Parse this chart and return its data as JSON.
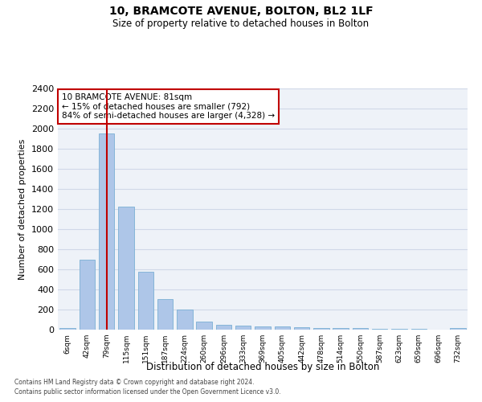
{
  "title1": "10, BRAMCOTE AVENUE, BOLTON, BL2 1LF",
  "title2": "Size of property relative to detached houses in Bolton",
  "xlabel": "Distribution of detached houses by size in Bolton",
  "ylabel": "Number of detached properties",
  "categories": [
    "6sqm",
    "42sqm",
    "79sqm",
    "115sqm",
    "151sqm",
    "187sqm",
    "224sqm",
    "260sqm",
    "296sqm",
    "333sqm",
    "369sqm",
    "405sqm",
    "442sqm",
    "478sqm",
    "514sqm",
    "550sqm",
    "587sqm",
    "623sqm",
    "659sqm",
    "696sqm",
    "732sqm"
  ],
  "values": [
    15,
    700,
    1950,
    1225,
    575,
    305,
    200,
    80,
    45,
    38,
    35,
    30,
    22,
    20,
    18,
    15,
    10,
    8,
    5,
    4,
    18
  ],
  "bar_color": "#aec6e8",
  "bar_edge_color": "#7aafd4",
  "highlight_bar_index": 2,
  "highlight_color": "#c00000",
  "annotation_text": "10 BRAMCOTE AVENUE: 81sqm\n← 15% of detached houses are smaller (792)\n84% of semi-detached houses are larger (4,328) →",
  "annotation_box_color": "#c00000",
  "ylim": [
    0,
    2400
  ],
  "yticks": [
    0,
    200,
    400,
    600,
    800,
    1000,
    1200,
    1400,
    1600,
    1800,
    2000,
    2200,
    2400
  ],
  "grid_color": "#d0d8e8",
  "background_color": "#eef2f8",
  "footer1": "Contains HM Land Registry data © Crown copyright and database right 2024.",
  "footer2": "Contains public sector information licensed under the Open Government Licence v3.0."
}
